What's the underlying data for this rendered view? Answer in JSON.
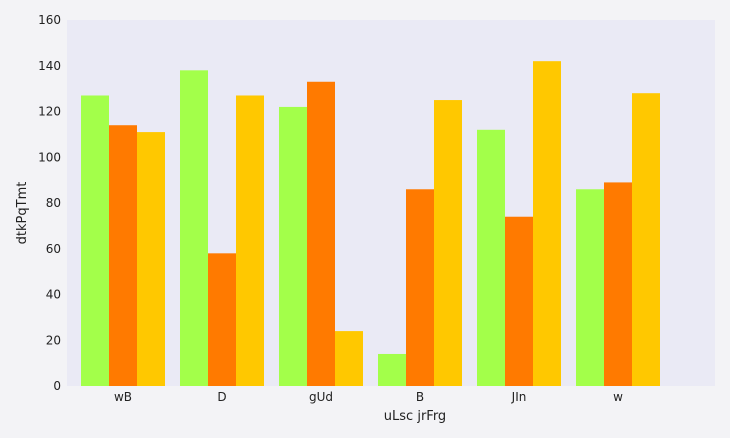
{
  "chart_data": {
    "type": "bar",
    "title": "",
    "xlabel": "uLsc jrFrg",
    "ylabel": "dtkPqTmt",
    "categories": [
      "wB",
      "D",
      "gUd",
      "B",
      "JIn",
      "w"
    ],
    "series": [
      {
        "values": [
          127,
          138,
          122,
          14,
          112,
          86
        ]
      },
      {
        "values": [
          114,
          58,
          133,
          86,
          74,
          89
        ]
      },
      {
        "values": [
          111,
          127,
          24,
          125,
          142,
          128
        ]
      }
    ],
    "ylim": [
      0,
      160
    ],
    "yticks": [
      0,
      20,
      40,
      60,
      80,
      100,
      120,
      140,
      160
    ],
    "grid": false,
    "colors": {
      "series": [
        "#a3ff4a",
        "#ff7a00",
        "#ffc800"
      ],
      "plot_background": "#eaeaf5",
      "page_background": "#f3f3f6"
    }
  }
}
